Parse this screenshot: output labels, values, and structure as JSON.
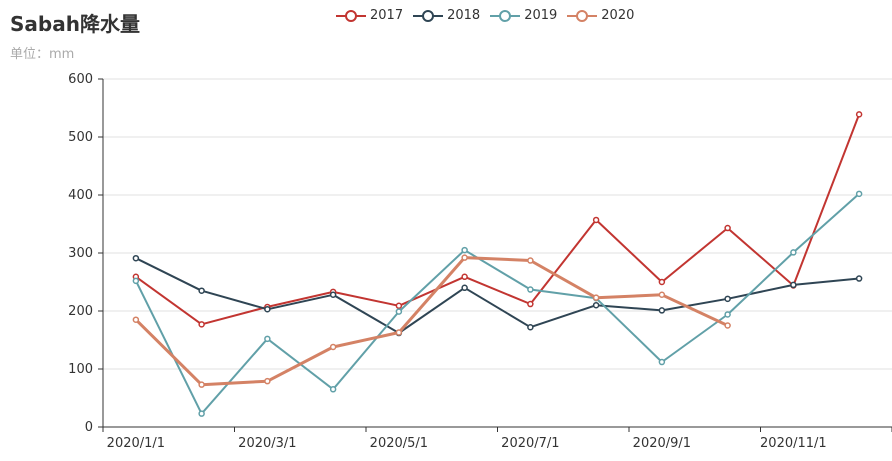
{
  "chart_data": {
    "type": "line",
    "title": "Sabah降水量",
    "subtitle": "单位：mm",
    "x": [
      "2020/1/1",
      "2020/2/1",
      "2020/3/1",
      "2020/4/1",
      "2020/5/1",
      "2020/6/1",
      "2020/7/1",
      "2020/8/1",
      "2020/9/1",
      "2020/10/1",
      "2020/11/1",
      "2020/12/1"
    ],
    "x_tick_labels": [
      "2020/1/1",
      "2020/3/1",
      "2020/5/1",
      "2020/7/1",
      "2020/9/1",
      "2020/11/1"
    ],
    "ylim": [
      0,
      600
    ],
    "y_ticks": [
      0,
      100,
      200,
      300,
      400,
      500,
      600
    ],
    "grid": true,
    "legend_position": "top-center",
    "series": [
      {
        "name": "2017",
        "color": "#c23531",
        "values": [
          259,
          177,
          207,
          233,
          209,
          259,
          212,
          357,
          250,
          343,
          244,
          539
        ]
      },
      {
        "name": "2018",
        "color": "#2f4554",
        "values": [
          291,
          235,
          203,
          228,
          162,
          240,
          172,
          210,
          201,
          221,
          245,
          256
        ]
      },
      {
        "name": "2019",
        "color": "#61a0a8",
        "values": [
          252,
          23,
          152,
          65,
          199,
          305,
          237,
          222,
          112,
          194,
          301,
          402
        ]
      },
      {
        "name": "2020",
        "color": "#d48265",
        "values": [
          185,
          73,
          79,
          138,
          163,
          292,
          287,
          223,
          228,
          175,
          null,
          null
        ]
      }
    ]
  }
}
